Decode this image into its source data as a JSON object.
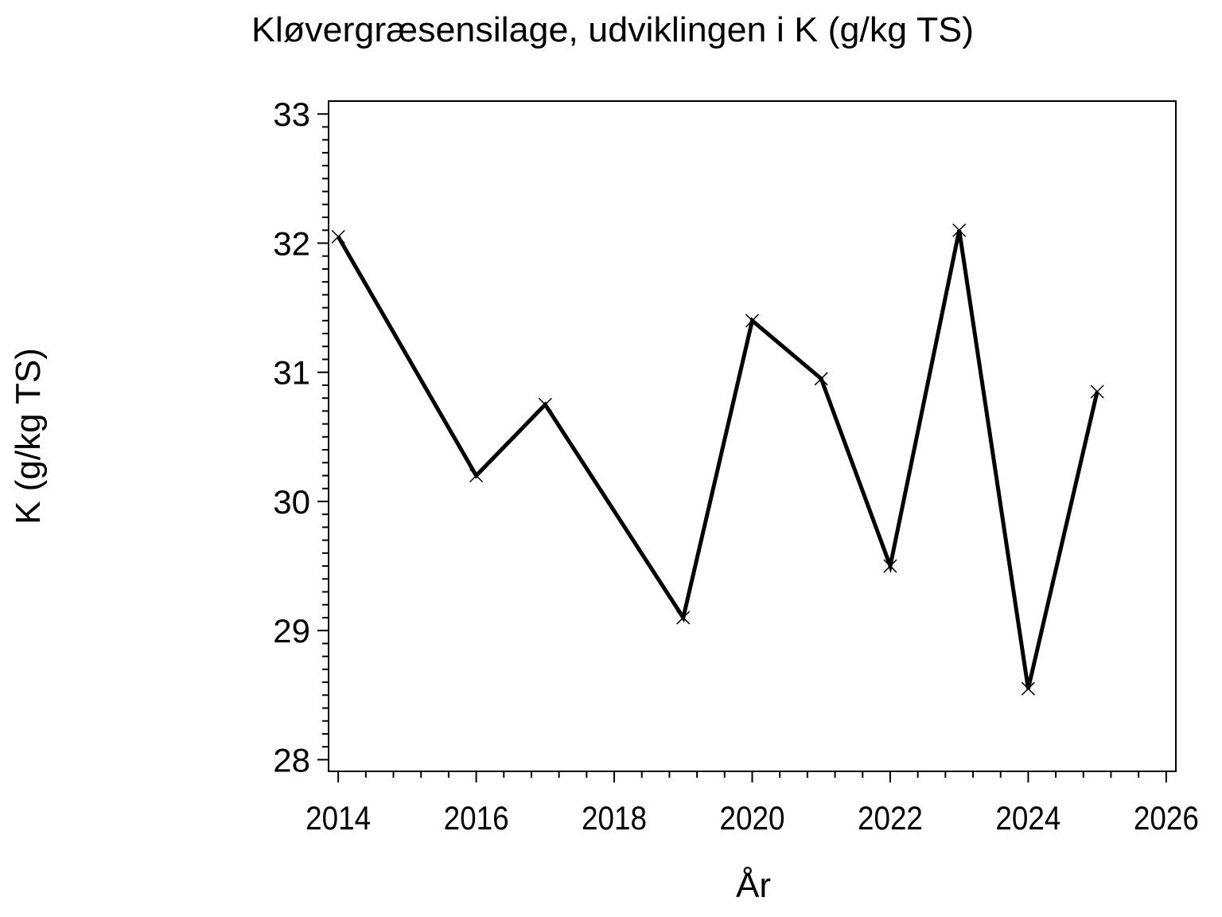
{
  "page": {
    "background": "#ffffff",
    "foreground": "#000000"
  },
  "chart_data": {
    "type": "line",
    "title": "Kløvergræsensilage, udviklingen i K (g/kg TS)",
    "xlabel": "År",
    "ylabel": "K (g/kg TS)",
    "x": [
      2014,
      2016,
      2017,
      2019,
      2020,
      2021,
      2022,
      2023,
      2024,
      2025
    ],
    "y": [
      32.05,
      30.2,
      30.75,
      29.1,
      31.4,
      30.95,
      29.5,
      32.1,
      28.55,
      30.85
    ],
    "marker": "x",
    "line_color": "#000000",
    "axis_color": "#000000",
    "xlim": [
      2013.86,
      2026.14
    ],
    "ylim": [
      27.91,
      33.1
    ],
    "x_major_ticks": [
      2014,
      2016,
      2018,
      2020,
      2022,
      2024,
      2026
    ],
    "x_tick_labels": [
      "2014",
      "2016",
      "2018",
      "2020",
      "2022",
      "2024",
      "2026"
    ],
    "x_minor_step": 0.4,
    "y_major_ticks": [
      28,
      29,
      30,
      31,
      32,
      33
    ],
    "y_tick_labels": [
      "28",
      "29",
      "30",
      "31",
      "32",
      "33"
    ],
    "y_minor_step": 0.1,
    "grid": false,
    "legend": "none"
  }
}
